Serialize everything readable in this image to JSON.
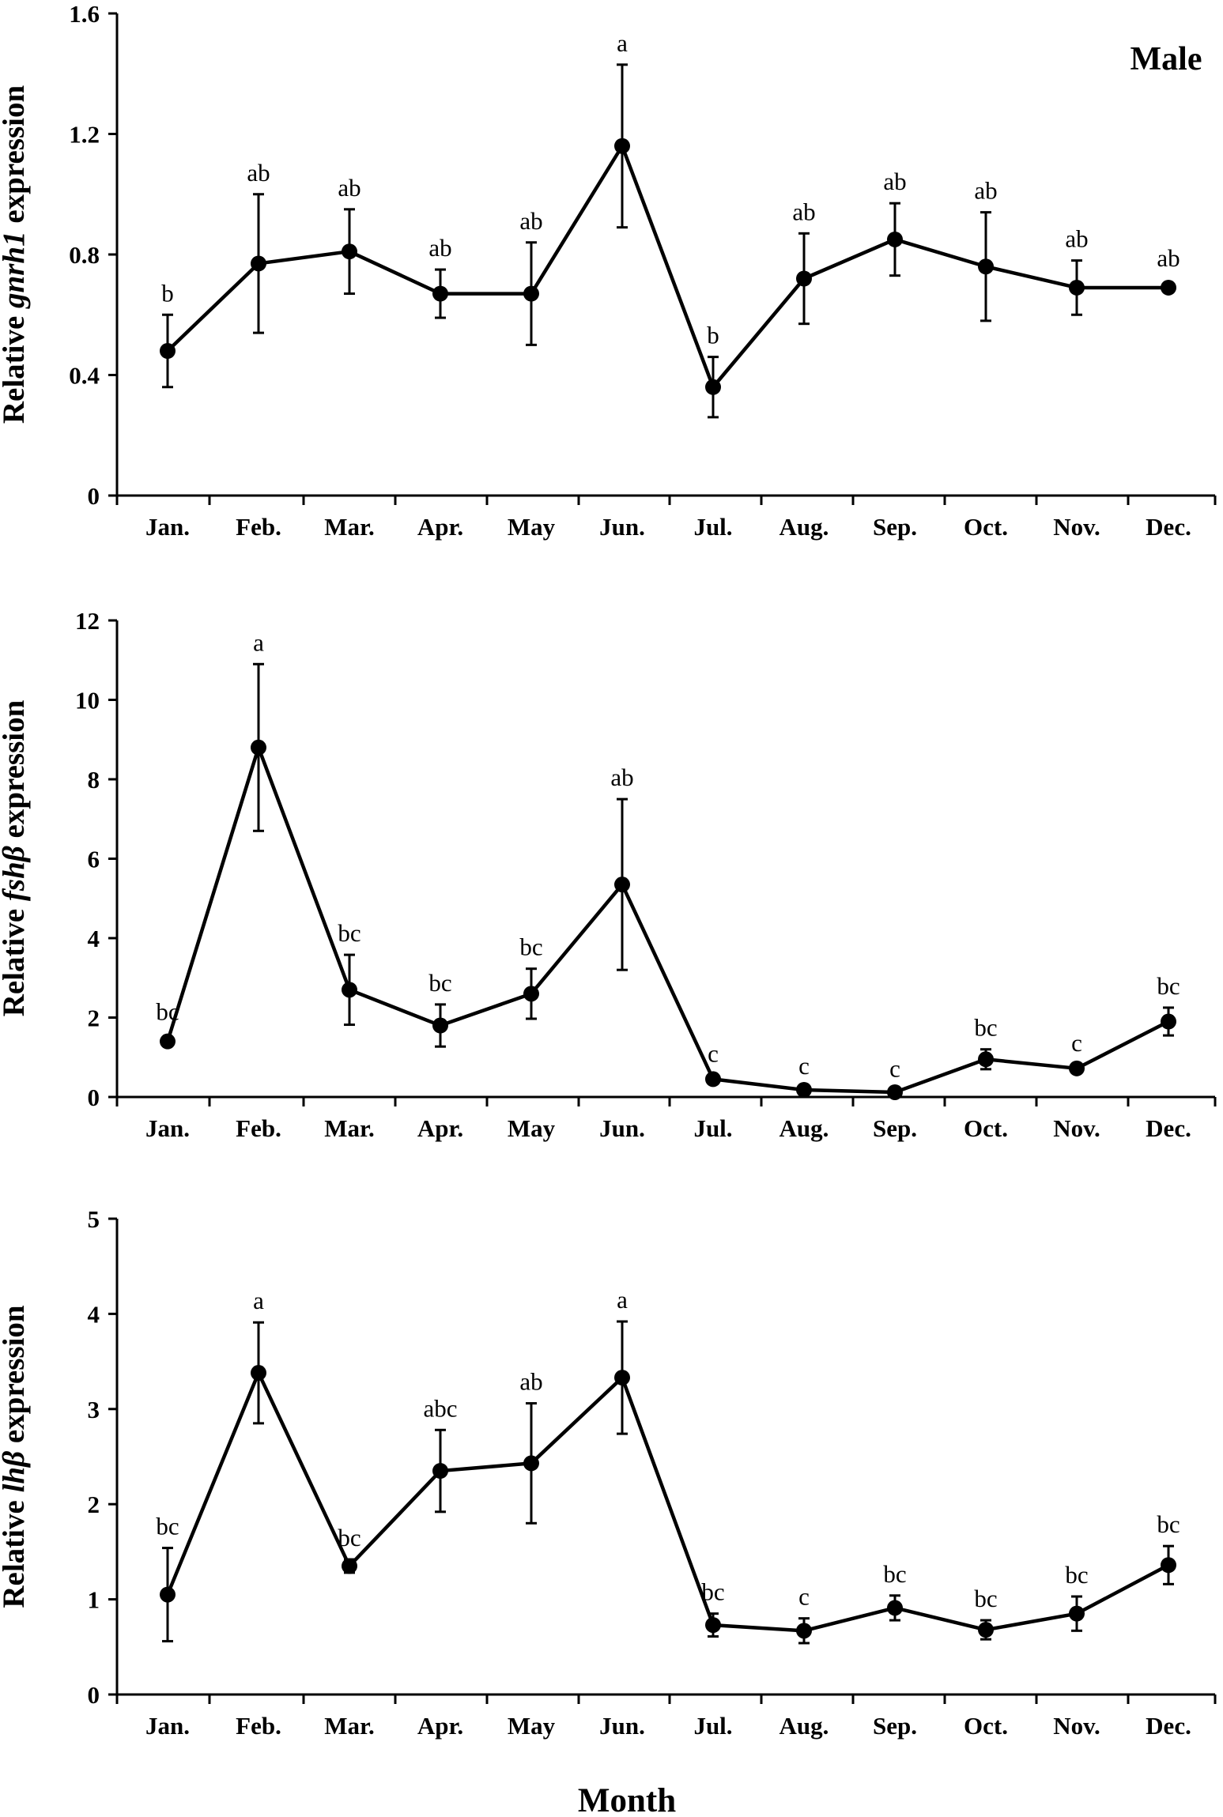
{
  "chart_data": [
    {
      "type": "line",
      "panel_label": "Male",
      "ylabel": {
        "prefix": "Relative ",
        "gene": "gnrh1",
        "suffix": " expression"
      },
      "ylim": [
        0,
        1.6
      ],
      "yticks": [
        "0",
        "0.4",
        "0.8",
        "1.2",
        "1.6"
      ],
      "categories": [
        "Jan.",
        "Feb.",
        "Mar.",
        "Apr.",
        "May",
        "Jun.",
        "Jul.",
        "Aug.",
        "Sep.",
        "Oct.",
        "Nov.",
        "Dec."
      ],
      "values": [
        0.48,
        0.77,
        0.81,
        0.67,
        0.67,
        1.16,
        0.36,
        0.72,
        0.85,
        0.76,
        0.69,
        0.69
      ],
      "errors": [
        0.12,
        0.23,
        0.14,
        0.08,
        0.17,
        0.27,
        0.1,
        0.15,
        0.12,
        0.18,
        0.09,
        0
      ],
      "significance": [
        "b",
        "ab",
        "ab",
        "ab",
        "ab",
        "a",
        "b",
        "ab",
        "ab",
        "ab",
        "ab",
        "ab"
      ]
    },
    {
      "type": "line",
      "ylabel": {
        "prefix": "Relative ",
        "gene": "fshβ",
        "suffix": " expression"
      },
      "ylim": [
        0,
        12
      ],
      "yticks": [
        "0",
        "2",
        "4",
        "6",
        "8",
        "10",
        "12"
      ],
      "categories": [
        "Jan.",
        "Feb.",
        "Mar.",
        "Apr.",
        "May",
        "Jun.",
        "Jul.",
        "Aug.",
        "Sep.",
        "Oct.",
        "Nov.",
        "Dec."
      ],
      "values": [
        1.4,
        8.8,
        2.7,
        1.8,
        2.6,
        5.35,
        0.45,
        0.18,
        0.12,
        0.95,
        0.72,
        1.9
      ],
      "errors": [
        0,
        2.1,
        0.88,
        0.53,
        0.63,
        2.15,
        0.1,
        0.06,
        0.05,
        0.25,
        0.1,
        0.35
      ],
      "significance": [
        "bc",
        "a",
        "bc",
        "bc",
        "bc",
        "ab",
        "c",
        "c",
        "c",
        "bc",
        "c",
        "bc"
      ]
    },
    {
      "type": "line",
      "ylabel": {
        "prefix": "Relative ",
        "gene": "lhβ",
        "suffix": " expression"
      },
      "ylim": [
        0,
        5
      ],
      "yticks": [
        "0",
        "1",
        "2",
        "3",
        "4",
        "5"
      ],
      "categories": [
        "Jan.",
        "Feb.",
        "Mar.",
        "Apr.",
        "May",
        "Jun.",
        "Jul.",
        "Aug.",
        "Sep.",
        "Oct.",
        "Nov.",
        "Dec."
      ],
      "values": [
        1.05,
        3.38,
        1.35,
        2.35,
        2.43,
        3.33,
        0.73,
        0.67,
        0.91,
        0.68,
        0.85,
        1.36
      ],
      "errors": [
        0.49,
        0.53,
        0.07,
        0.43,
        0.63,
        0.59,
        0.12,
        0.13,
        0.13,
        0.1,
        0.18,
        0.2
      ],
      "significance": [
        "bc",
        "a",
        "bc",
        "abc",
        "ab",
        "a",
        "bc",
        "c",
        "bc",
        "bc",
        "bc",
        "bc"
      ]
    }
  ],
  "xlabel": "Month"
}
